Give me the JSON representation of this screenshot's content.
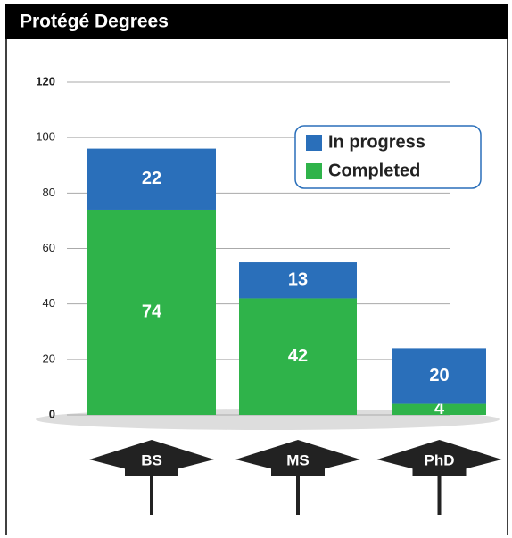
{
  "chart_data": {
    "type": "bar",
    "stacked": true,
    "title": "Protégé Degrees",
    "categories": [
      "BS",
      "MS",
      "PhD"
    ],
    "series": [
      {
        "name": "Completed",
        "color": "#2fb34a",
        "values": [
          74,
          42,
          4
        ]
      },
      {
        "name": "In progress",
        "color": "#2a6fba",
        "values": [
          22,
          13,
          20
        ]
      }
    ],
    "ylim": [
      0,
      120
    ],
    "yticks": [
      0,
      20,
      40,
      60,
      80,
      100,
      120
    ],
    "grid": true,
    "legend": "top-right"
  }
}
